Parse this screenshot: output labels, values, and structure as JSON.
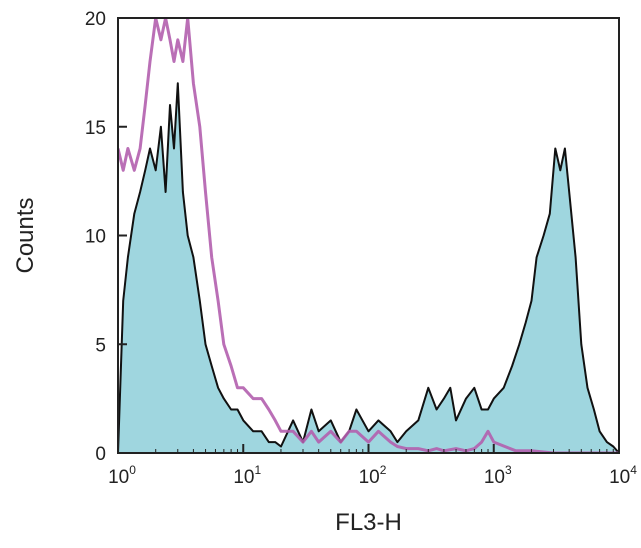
{
  "chart_data": {
    "type": "area",
    "xlabel": "FL3-H",
    "ylabel": "Counts",
    "xscale": "log",
    "xlim": [
      1,
      10000
    ],
    "ylim": [
      0,
      20
    ],
    "x_ticks": [
      {
        "value": 1,
        "base": "10",
        "exp": "0"
      },
      {
        "value": 10,
        "base": "10",
        "exp": "1"
      },
      {
        "value": 100,
        "base": "10",
        "exp": "2"
      },
      {
        "value": 1000,
        "base": "10",
        "exp": "3"
      },
      {
        "value": 10000,
        "base": "10",
        "exp": "4"
      }
    ],
    "y_ticks": [
      0,
      5,
      10,
      15,
      20
    ],
    "grid": false,
    "colors": {
      "filled": "#9fd6df",
      "outline": "#111111",
      "control": "#b25fae",
      "axes": "#222222"
    },
    "series": [
      {
        "style": "filled-with-black-outline",
        "x": [
          1.0,
          1.1,
          1.2,
          1.35,
          1.5,
          1.65,
          1.8,
          2.0,
          2.2,
          2.4,
          2.6,
          2.8,
          3.0,
          3.3,
          3.6,
          4.0,
          4.5,
          5.0,
          5.6,
          6.3,
          7.0,
          8.0,
          9.0,
          10.0,
          12.0,
          14.0,
          16.0,
          18.0,
          20.0,
          25.0,
          30.0,
          35.0,
          40.0,
          50.0,
          60.0,
          70.0,
          80.0,
          100.0,
          120.0,
          150.0,
          170.0,
          200.0,
          250.0,
          300.0,
          350.0,
          400.0,
          450.0,
          500.0,
          600.0,
          700.0,
          800.0,
          900.0,
          1000.0,
          1200.0,
          1400.0,
          1600.0,
          1800.0,
          2000.0,
          2200.0,
          2500.0,
          2800.0,
          3100.0,
          3400.0,
          3700.0,
          4000.0,
          4500.0,
          5000.0,
          5600.0,
          6300.0,
          7000.0,
          8000.0,
          9000.0,
          10000.0
        ],
        "y": [
          0,
          7,
          9,
          11,
          12,
          13,
          14,
          13,
          15,
          12,
          16,
          14,
          17,
          12,
          10,
          9,
          7,
          5,
          4,
          3,
          2.5,
          2,
          2,
          1.5,
          1,
          1,
          0.5,
          0.5,
          0.3,
          1.5,
          0.5,
          2,
          1,
          1.5,
          0.5,
          1,
          2,
          1,
          1.5,
          1,
          0.5,
          1,
          1.5,
          3,
          2,
          2.5,
          3,
          1.5,
          2.5,
          3,
          2,
          2,
          2.5,
          3,
          4,
          5,
          6,
          7,
          9,
          10,
          11,
          14,
          13,
          14,
          12,
          9,
          5,
          3,
          2,
          1,
          0.5,
          0.3,
          0
        ]
      },
      {
        "style": "magenta-outline",
        "x": [
          1.0,
          1.1,
          1.2,
          1.35,
          1.5,
          1.65,
          1.8,
          2.0,
          2.2,
          2.4,
          2.6,
          2.8,
          3.0,
          3.3,
          3.6,
          4.0,
          4.5,
          5.0,
          5.6,
          6.3,
          7.0,
          8.0,
          9.0,
          10.0,
          12.0,
          14.0,
          16.0,
          18.0,
          20.0,
          25.0,
          30.0,
          35.0,
          40.0,
          50.0,
          60.0,
          70.0,
          80.0,
          100.0,
          120.0,
          150.0,
          170.0,
          200.0,
          250.0,
          300.0,
          350.0,
          400.0,
          500.0,
          600.0,
          700.0,
          800.0,
          900.0,
          1000.0,
          1500.0,
          2000.0,
          3000.0,
          5000.0,
          10000.0
        ],
        "y": [
          14,
          13,
          14,
          13,
          14,
          16,
          18,
          20,
          19,
          20,
          19,
          18,
          19,
          18,
          20,
          17,
          15,
          12,
          9,
          7,
          5,
          4,
          3,
          3,
          2.5,
          2.5,
          2,
          1.5,
          1,
          1,
          0.5,
          1,
          0.5,
          1,
          0.5,
          1,
          1,
          0.5,
          1,
          0.5,
          0.3,
          0.2,
          0.2,
          0.1,
          0.2,
          0.1,
          0.2,
          0.1,
          0.2,
          0.5,
          1,
          0.5,
          0.1,
          0.1,
          0,
          0,
          0
        ]
      }
    ]
  }
}
